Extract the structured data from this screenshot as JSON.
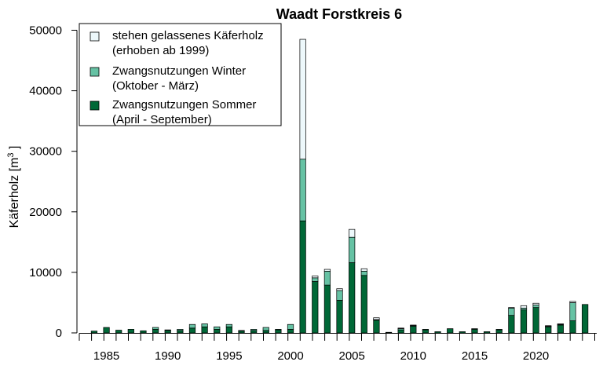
{
  "chart_data": {
    "type": "bar",
    "stacked": true,
    "title": "Waadt Forstkreis 6",
    "ylabel": "Käferholz [m",
    "ylabel_sup": "3",
    "ylabel_close": " ]",
    "ylim": [
      0,
      50000
    ],
    "yticks": [
      0,
      10000,
      20000,
      30000,
      40000,
      50000
    ],
    "yticks_labels": [
      "0",
      "10000",
      "20000",
      "30000",
      "40000",
      "50000"
    ],
    "xticks_labels": [
      "1985",
      "1990",
      "1995",
      "2000",
      "2005",
      "2010",
      "2015",
      "2020"
    ],
    "xticks_values": [
      1985,
      1990,
      1995,
      2000,
      2005,
      2010,
      2015,
      2020
    ],
    "grid": false,
    "legend_position": "top-left",
    "categories": [
      1984,
      1985,
      1986,
      1987,
      1988,
      1989,
      1990,
      1991,
      1992,
      1993,
      1994,
      1995,
      1996,
      1997,
      1998,
      1999,
      2000,
      2001,
      2002,
      2003,
      2004,
      2005,
      2006,
      2007,
      2008,
      2009,
      2010,
      2011,
      2012,
      2013,
      2014,
      2015,
      2016,
      2017,
      2018,
      2019,
      2020,
      2021,
      2022,
      2023,
      2024
    ],
    "series": [
      {
        "name": "Zwangsnutzungen Sommer",
        "name_line2": "(April - September)",
        "color": "#006837",
        "values": [
          300,
          900,
          450,
          600,
          350,
          600,
          400,
          400,
          800,
          1000,
          600,
          1000,
          300,
          400,
          400,
          500,
          600,
          18500,
          8500,
          7900,
          5400,
          11600,
          9500,
          2100,
          100,
          500,
          1100,
          500,
          200,
          700,
          200,
          600,
          200,
          500,
          2900,
          3800,
          4200,
          1000,
          1300,
          2000,
          4700
        ]
      },
      {
        "name": "Zwangsnutzungen Winter",
        "name_line2": "(Oktober - März)",
        "color": "#66c2a4",
        "values": [
          0,
          0,
          0,
          0,
          0,
          300,
          100,
          200,
          600,
          500,
          400,
          400,
          100,
          200,
          500,
          100,
          800,
          10200,
          600,
          2300,
          1600,
          4200,
          700,
          100,
          0,
          200,
          100,
          100,
          0,
          0,
          0,
          100,
          0,
          100,
          1200,
          300,
          400,
          100,
          100,
          3000,
          0
        ]
      },
      {
        "name": "stehen gelassenes Käferholz",
        "name_line2": "(erhoben ab 1999)",
        "color": "#edf8fb",
        "values": [
          0,
          0,
          0,
          0,
          0,
          0,
          0,
          0,
          0,
          0,
          0,
          0,
          0,
          0,
          0,
          0,
          0,
          19800,
          300,
          300,
          300,
          1300,
          400,
          300,
          0,
          100,
          100,
          0,
          0,
          0,
          0,
          0,
          0,
          0,
          100,
          400,
          300,
          100,
          100,
          200,
          0
        ]
      }
    ],
    "legend_order": [
      2,
      1,
      0
    ]
  }
}
